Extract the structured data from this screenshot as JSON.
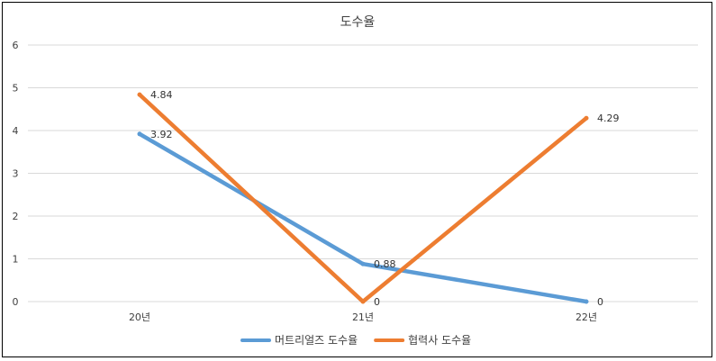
{
  "chart_data": {
    "type": "line",
    "title": "도수율",
    "categories": [
      "20년",
      "21년",
      "22년"
    ],
    "series": [
      {
        "name": "머트리얼즈 도수율",
        "color": "#5b9bd5",
        "values": [
          3.92,
          0.88,
          0
        ],
        "labels": [
          "3.92",
          "0.88",
          "0"
        ]
      },
      {
        "name": "협력사 도수율",
        "color": "#ed7d31",
        "values": [
          4.84,
          0,
          4.29
        ],
        "labels": [
          "4.84",
          "0",
          "4.29"
        ]
      }
    ],
    "ylim": [
      0,
      6
    ],
    "yticks": [
      0,
      1,
      2,
      3,
      4,
      5,
      6
    ],
    "grid": true,
    "legend": "bottom"
  }
}
